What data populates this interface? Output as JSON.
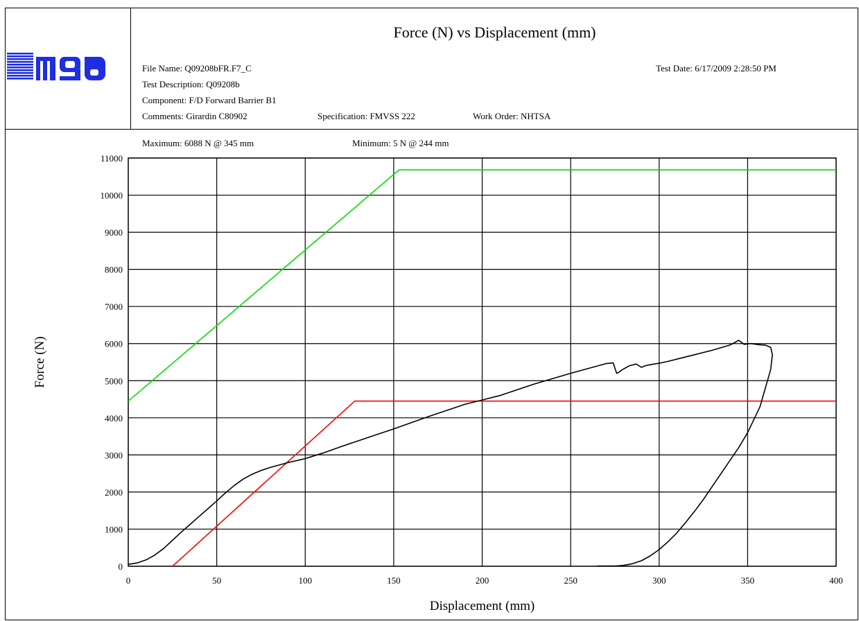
{
  "header": {
    "logo_text": "mga",
    "title": "Force (N) vs Displacement (mm)",
    "file_name": "File Name: Q09208bFR.F7_C",
    "test_description": "Test Description: Q09208b",
    "component": "Component: F/D Forward Barrier B1",
    "comments": "Comments: Girardin C80902",
    "specification": "Specification: FMVSS 222",
    "work_order": "Work Order: NHTSA",
    "test_date": "Test Date: 6/17/2009  2:28:50 PM",
    "maximum": "Maximum: 6088 N @ 345 mm",
    "minimum": "Minimum: 5 N @ 244 mm"
  },
  "colors": {
    "upper_limit": "#00e000",
    "lower_limit": "#ff0000",
    "measured": "#000000",
    "logo": "#1e2ee0"
  },
  "chart_data": {
    "type": "line",
    "xlabel": "Displacement (mm)",
    "ylabel": "Force (N)",
    "xlim": [
      0,
      400
    ],
    "ylim": [
      0,
      11000
    ],
    "xticks": [
      0,
      50,
      100,
      150,
      200,
      250,
      300,
      350,
      400
    ],
    "yticks": [
      0,
      1000,
      2000,
      3000,
      4000,
      5000,
      6000,
      7000,
      8000,
      9000,
      10000,
      11000
    ],
    "grid": true,
    "series": [
      {
        "color": "#00e000",
        "x": [
          0,
          153,
          400
        ],
        "y": [
          4450,
          10680,
          10680
        ]
      },
      {
        "color": "#ff0000",
        "x": [
          25,
          128,
          400
        ],
        "y": [
          0,
          4450,
          4450
        ]
      },
      {
        "color": "#000000",
        "x": [
          0,
          5,
          10,
          15,
          20,
          25,
          30,
          35,
          40,
          45,
          50,
          55,
          60,
          65,
          70,
          75,
          80,
          90,
          100,
          110,
          120,
          130,
          140,
          150,
          160,
          170,
          180,
          190,
          200,
          210,
          220,
          230,
          240,
          250,
          260,
          270,
          274,
          276,
          277,
          279,
          283,
          287,
          290,
          292,
          295,
          300,
          305,
          310,
          320,
          330,
          340,
          345,
          348,
          352,
          356,
          360,
          363,
          364,
          363,
          360,
          357,
          353,
          350,
          345,
          340,
          335,
          330,
          325,
          320,
          315,
          310,
          305,
          300,
          295,
          290,
          285,
          280,
          275,
          270,
          265
        ],
        "y": [
          50,
          90,
          170,
          300,
          480,
          700,
          920,
          1130,
          1340,
          1550,
          1760,
          1980,
          2180,
          2350,
          2480,
          2580,
          2660,
          2790,
          2900,
          3050,
          3220,
          3380,
          3540,
          3700,
          3870,
          4040,
          4200,
          4360,
          4480,
          4600,
          4760,
          4920,
          5060,
          5200,
          5330,
          5460,
          5480,
          5200,
          5220,
          5290,
          5400,
          5450,
          5360,
          5400,
          5430,
          5470,
          5520,
          5580,
          5700,
          5820,
          5960,
          6088,
          5980,
          6000,
          5970,
          5960,
          5900,
          5700,
          5300,
          4800,
          4300,
          3900,
          3600,
          3200,
          2850,
          2500,
          2150,
          1800,
          1480,
          1180,
          900,
          660,
          450,
          280,
          150,
          70,
          25,
          5,
          5,
          5
        ]
      }
    ]
  }
}
